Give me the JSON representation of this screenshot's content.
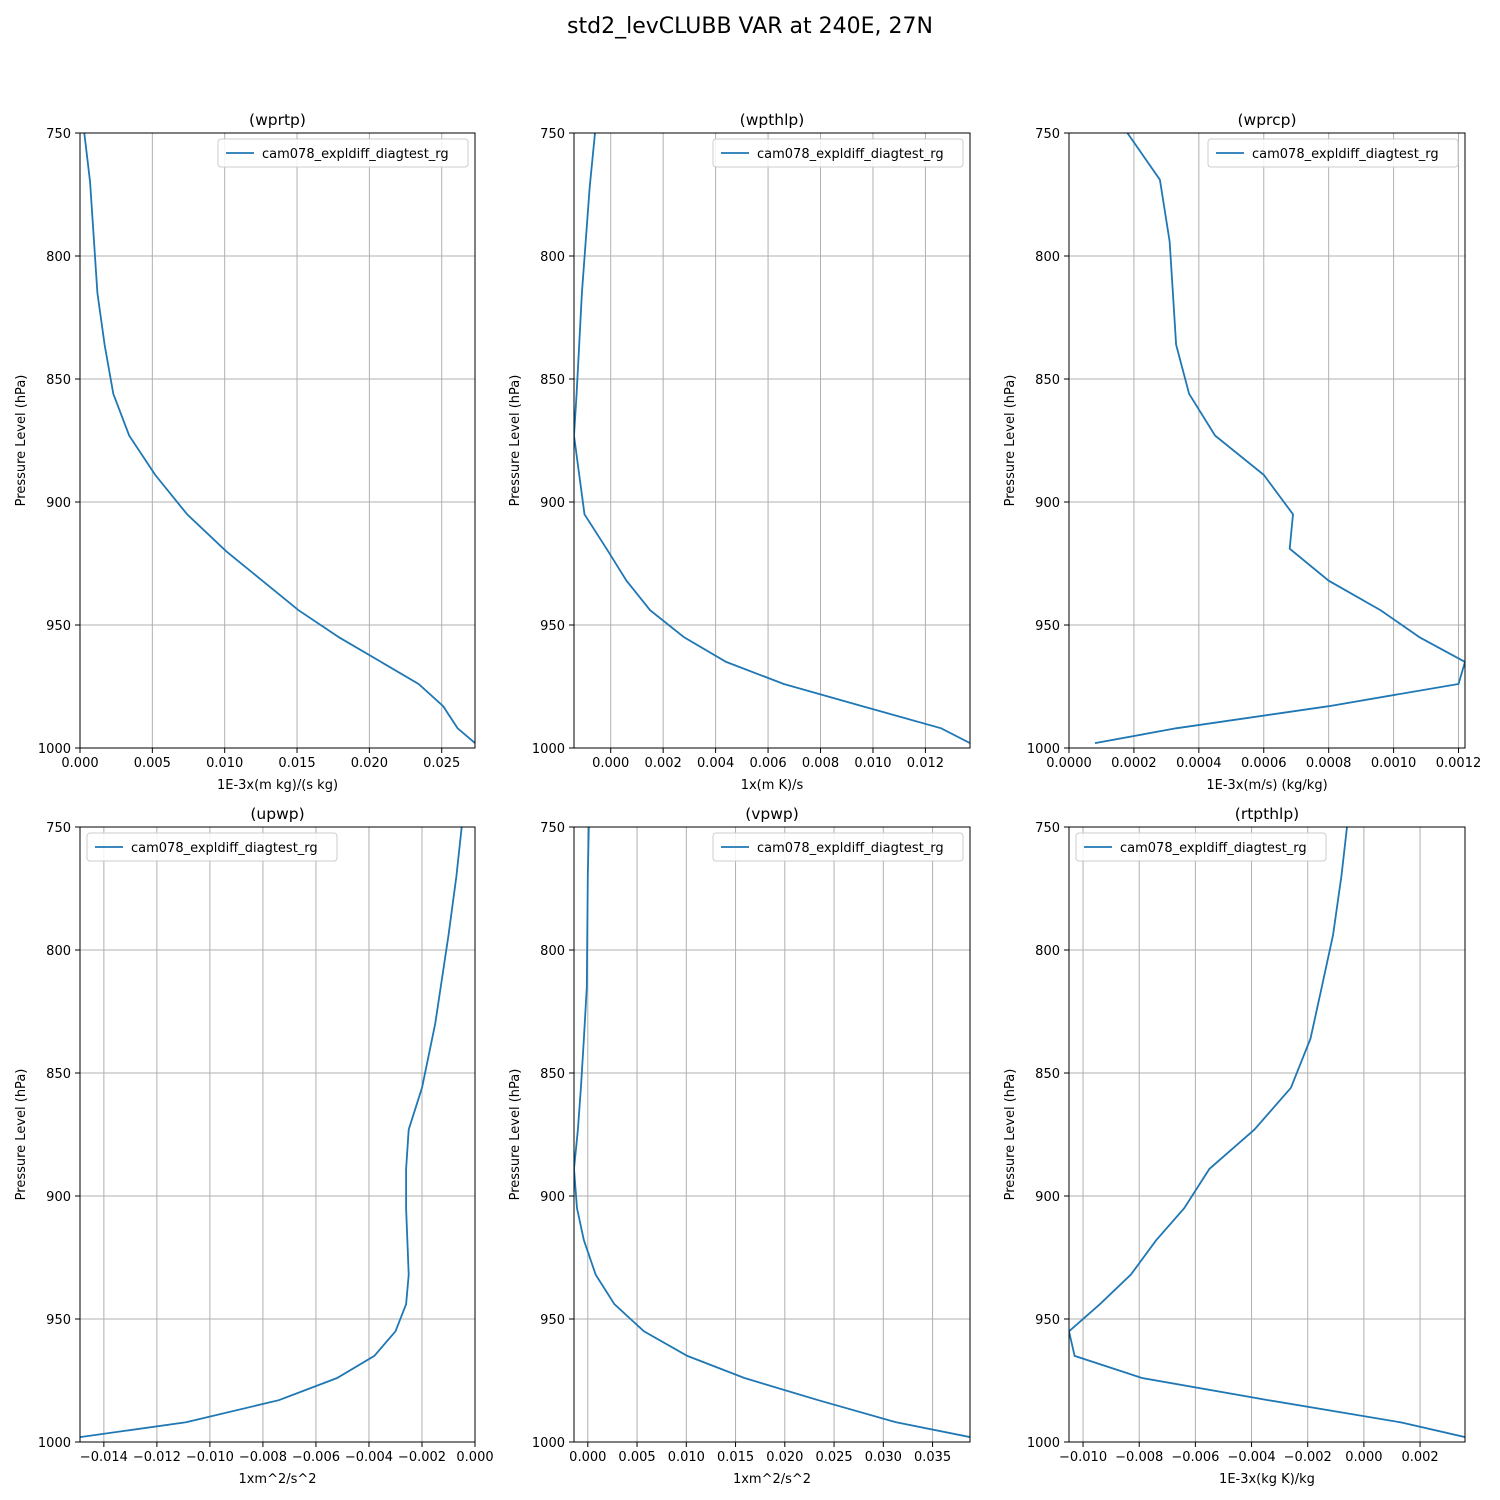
{
  "figure": {
    "title": "std2_levCLUBB VAR at 240E, 27N",
    "line_color": "#1f77b4",
    "grid_color": "#b0b0b0"
  },
  "chart_data": [
    {
      "type": "line",
      "title": "(wprtp)",
      "xlabel": "1E-3x(m kg)/(s kg)",
      "ylabel": "Pressure Level (hPa)",
      "xlim": [
        0,
        0.0273
      ],
      "ylim": [
        1000,
        750
      ],
      "xticks": [
        0,
        0.005,
        0.01,
        0.015,
        0.02,
        0.025
      ],
      "xtick_labels": [
        "0.000",
        "0.005",
        "0.010",
        "0.015",
        "0.020",
        "0.025"
      ],
      "yticks": [
        750,
        800,
        850,
        900,
        950,
        1000
      ],
      "ytick_labels": [
        "750",
        "800",
        "850",
        "900",
        "950",
        "1000"
      ],
      "grid": true,
      "legend": "upper right",
      "series": [
        {
          "name": "cam078_expldiff_diagtest_rg",
          "x": [
            0.0003,
            0.0007,
            0.0012,
            0.0017,
            0.0023,
            0.0034,
            0.0052,
            0.0074,
            0.0101,
            0.0126,
            0.0151,
            0.0179,
            0.0208,
            0.0234,
            0.0251,
            0.0261,
            0.0273
          ],
          "y": [
            750,
            770,
            815,
            836,
            856,
            873,
            889,
            905,
            920,
            932,
            944,
            955,
            965,
            974,
            983,
            992,
            998
          ]
        }
      ]
    },
    {
      "type": "line",
      "title": "(wpthlp)",
      "xlabel": "1x(m K)/s",
      "ylabel": "Pressure Level (hPa)",
      "xlim": [
        -0.0014,
        0.0137
      ],
      "ylim": [
        1000,
        750
      ],
      "xticks": [
        0,
        0.002,
        0.004,
        0.006,
        0.008,
        0.01,
        0.012
      ],
      "xtick_labels": [
        "0.000",
        "0.002",
        "0.004",
        "0.006",
        "0.008",
        "0.010",
        "0.012"
      ],
      "yticks": [
        750,
        800,
        850,
        900,
        950,
        1000
      ],
      "ytick_labels": [
        "750",
        "800",
        "850",
        "900",
        "950",
        "1000"
      ],
      "grid": true,
      "legend": "upper right",
      "series": [
        {
          "name": "cam078_expldiff_diagtest_rg",
          "x": [
            -0.0006,
            -0.0008,
            -0.0011,
            -0.0012,
            -0.0013,
            -0.0014,
            -0.001,
            -0.0001,
            0.0006,
            0.0015,
            0.0028,
            0.0044,
            0.0066,
            0.0096,
            0.0126,
            0.0137
          ],
          "y": [
            750,
            772,
            815,
            836,
            856,
            873,
            905,
            920,
            932,
            944,
            955,
            965,
            974,
            983,
            992,
            998
          ]
        }
      ]
    },
    {
      "type": "line",
      "title": "(wprcp)",
      "xlabel": "1E-3x(m/s) (kg/kg)",
      "ylabel": "Pressure Level (hPa)",
      "xlim": [
        0,
        0.00122
      ],
      "ylim": [
        1000,
        750
      ],
      "xticks": [
        0,
        0.0002,
        0.0004,
        0.0006,
        0.0008,
        0.001,
        0.0012
      ],
      "xtick_labels": [
        "0.0000",
        "0.0002",
        "0.0004",
        "0.0006",
        "0.0008",
        "0.0010",
        "0.0012"
      ],
      "yticks": [
        750,
        800,
        850,
        900,
        950,
        1000
      ],
      "ytick_labels": [
        "750",
        "800",
        "850",
        "900",
        "950",
        "1000"
      ],
      "grid": true,
      "legend": "upper right",
      "series": [
        {
          "name": "cam078_expldiff_diagtest_rg",
          "x": [
            0.00018,
            0.00028,
            0.00031,
            0.00032,
            0.00033,
            0.00037,
            0.00045,
            0.0006,
            0.00069,
            0.00068,
            0.0008,
            0.00096,
            0.00108,
            0.00122,
            0.0012,
            0.0008,
            0.00033,
            8e-05
          ],
          "y": [
            750,
            769,
            794,
            815,
            836,
            856,
            873,
            889,
            905,
            919,
            932,
            944,
            955,
            965,
            974,
            983,
            992,
            998
          ]
        }
      ]
    },
    {
      "type": "line",
      "title": "(upwp)",
      "xlabel": "1xm^2/s^2",
      "ylabel": "Pressure Level (hPa)",
      "xlim": [
        -0.0149,
        0
      ],
      "ylim": [
        1000,
        750
      ],
      "xticks": [
        -0.014,
        -0.012,
        -0.01,
        -0.008,
        -0.006,
        -0.004,
        -0.002,
        0
      ],
      "xtick_labels": [
        "−0.014",
        "−0.012",
        "−0.010",
        "−0.008",
        "−0.006",
        "−0.004",
        "−0.002",
        "0.000"
      ],
      "yticks": [
        750,
        800,
        850,
        900,
        950,
        1000
      ],
      "ytick_labels": [
        "750",
        "800",
        "850",
        "900",
        "950",
        "1000"
      ],
      "grid": true,
      "legend": "upper left",
      "series": [
        {
          "name": "cam078_expldiff_diagtest_rg",
          "x": [
            -0.0005,
            -0.0007,
            -0.001,
            -0.0015,
            -0.002,
            -0.0025,
            -0.0026,
            -0.0026,
            -0.0025,
            -0.0026,
            -0.003,
            -0.0038,
            -0.0052,
            -0.0074,
            -0.0109,
            -0.0149
          ],
          "y": [
            750,
            770,
            794,
            830,
            856,
            873,
            889,
            905,
            932,
            944,
            955,
            965,
            974,
            983,
            992,
            998
          ]
        }
      ]
    },
    {
      "type": "line",
      "title": "(vpwp)",
      "xlabel": "1xm^2/s^2",
      "ylabel": "Pressure Level (hPa)",
      "xlim": [
        -0.0014,
        0.0388
      ],
      "ylim": [
        1000,
        750
      ],
      "xticks": [
        0,
        0.005,
        0.01,
        0.015,
        0.02,
        0.025,
        0.03,
        0.035
      ],
      "xtick_labels": [
        "0.000",
        "0.005",
        "0.010",
        "0.015",
        "0.020",
        "0.025",
        "0.030",
        "0.035"
      ],
      "yticks": [
        750,
        800,
        850,
        900,
        950,
        1000
      ],
      "ytick_labels": [
        "750",
        "800",
        "850",
        "900",
        "950",
        "1000"
      ],
      "grid": true,
      "legend": "upper right",
      "series": [
        {
          "name": "cam078_expldiff_diagtest_rg",
          "x": [
            0.0001,
            0.0,
            -0.0001,
            -0.0004,
            -0.0007,
            -0.001,
            -0.0014,
            -0.0011,
            -0.0004,
            0.0008,
            0.0027,
            0.0057,
            0.0101,
            0.0159,
            0.0234,
            0.0313,
            0.0388
          ],
          "y": [
            750,
            770,
            815,
            836,
            856,
            873,
            889,
            905,
            918,
            932,
            944,
            955,
            965,
            974,
            983,
            992,
            998
          ]
        }
      ]
    },
    {
      "type": "line",
      "title": "(rtpthlp)",
      "xlabel": "1E-3x(kg K)/kg",
      "ylabel": "Pressure Level (hPa)",
      "xlim": [
        -0.0105,
        0.0036
      ],
      "ylim": [
        1000,
        750
      ],
      "xticks": [
        -0.01,
        -0.008,
        -0.006,
        -0.004,
        -0.002,
        0,
        0.002
      ],
      "xtick_labels": [
        "−0.010",
        "−0.008",
        "−0.006",
        "−0.004",
        "−0.002",
        "0.000",
        "0.002"
      ],
      "yticks": [
        750,
        800,
        850,
        900,
        950,
        1000
      ],
      "ytick_labels": [
        "750",
        "800",
        "850",
        "900",
        "950",
        "1000"
      ],
      "grid": true,
      "legend": "upper left",
      "series": [
        {
          "name": "cam078_expldiff_diagtest_rg",
          "x": [
            -0.0006,
            -0.0008,
            -0.0011,
            -0.0015,
            -0.0019,
            -0.0026,
            -0.0039,
            -0.0055,
            -0.0064,
            -0.0074,
            -0.0083,
            -0.0094,
            -0.0105,
            -0.0103,
            -0.0079,
            -0.0034,
            0.0013,
            0.0036
          ],
          "y": [
            750,
            770,
            794,
            815,
            836,
            856,
            873,
            889,
            905,
            918,
            932,
            944,
            955,
            965,
            974,
            983,
            992,
            998
          ]
        }
      ]
    }
  ]
}
